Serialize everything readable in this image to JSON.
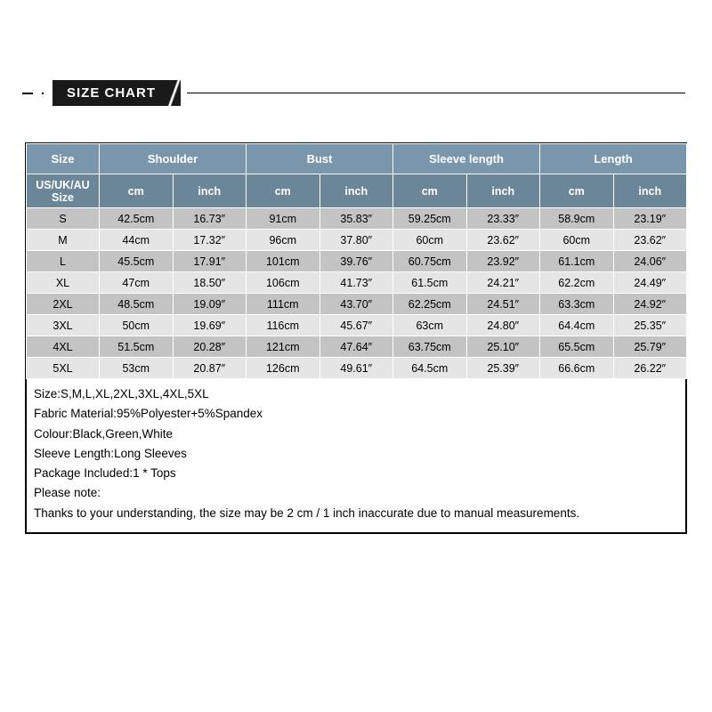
{
  "title": "SIZE CHART",
  "colors": {
    "header_row1_bg": "#7996ac",
    "header_row2_bg": "#6b8599",
    "header_text": "#ffffff",
    "body_row_odd_bg": "#c3c3c3",
    "body_row_even_bg": "#e5e5e5",
    "border": "#ffffff",
    "outer_border": "#000000",
    "badge_bg": "#1a1a1a",
    "text": "#000000"
  },
  "table": {
    "top_headers": [
      "Size",
      "Shoulder",
      "Bust",
      "Sleeve length",
      "Length"
    ],
    "sub_headers": [
      "US/UK/AU Size",
      "cm",
      "inch",
      "cm",
      "inch",
      "cm",
      "inch",
      "cm",
      "inch"
    ],
    "rows": [
      {
        "size": "S",
        "shoulder_cm": "42.5cm",
        "shoulder_in": "16.73″",
        "bust_cm": "91cm",
        "bust_in": "35.83″",
        "sleeve_cm": "59.25cm",
        "sleeve_in": "23.33″",
        "length_cm": "58.9cm",
        "length_in": "23.19″"
      },
      {
        "size": "M",
        "shoulder_cm": "44cm",
        "shoulder_in": "17.32″",
        "bust_cm": "96cm",
        "bust_in": "37.80″",
        "sleeve_cm": "60cm",
        "sleeve_in": "23.62″",
        "length_cm": "60cm",
        "length_in": "23.62″"
      },
      {
        "size": "L",
        "shoulder_cm": "45.5cm",
        "shoulder_in": "17.91″",
        "bust_cm": "101cm",
        "bust_in": "39.76″",
        "sleeve_cm": "60.75cm",
        "sleeve_in": "23.92″",
        "length_cm": "61.1cm",
        "length_in": "24.06″"
      },
      {
        "size": "XL",
        "shoulder_cm": "47cm",
        "shoulder_in": "18.50″",
        "bust_cm": "106cm",
        "bust_in": "41.73″",
        "sleeve_cm": "61.5cm",
        "sleeve_in": "24.21″",
        "length_cm": "62.2cm",
        "length_in": "24.49″"
      },
      {
        "size": "2XL",
        "shoulder_cm": "48.5cm",
        "shoulder_in": "19.09″",
        "bust_cm": "111cm",
        "bust_in": "43.70″",
        "sleeve_cm": "62.25cm",
        "sleeve_in": "24.51″",
        "length_cm": "63.3cm",
        "length_in": "24.92″"
      },
      {
        "size": "3XL",
        "shoulder_cm": "50cm",
        "shoulder_in": "19.69″",
        "bust_cm": "116cm",
        "bust_in": "45.67″",
        "sleeve_cm": "63cm",
        "sleeve_in": "24.80″",
        "length_cm": "64.4cm",
        "length_in": "25.35″"
      },
      {
        "size": "4XL",
        "shoulder_cm": "51.5cm",
        "shoulder_in": "20.28″",
        "bust_cm": "121cm",
        "bust_in": "47.64″",
        "sleeve_cm": "63.75cm",
        "sleeve_in": "25.10″",
        "length_cm": "65.5cm",
        "length_in": "25.79″"
      },
      {
        "size": "5XL",
        "shoulder_cm": "53cm",
        "shoulder_in": "20.87″",
        "bust_cm": "126cm",
        "bust_in": "49.61″",
        "sleeve_cm": "64.5cm",
        "sleeve_in": "25.39″",
        "length_cm": "66.6cm",
        "length_in": "26.22″"
      }
    ]
  },
  "notes": [
    "Size:S,M,L,XL,2XL,3XL,4XL,5XL",
    "Fabric Material:95%Polyester+5%Spandex",
    "Colour:Black,Green,White",
    "Sleeve Length:Long Sleeves",
    "Package Included:1 * Tops",
    "Please note:",
    "Thanks to your understanding, the size may be 2 cm / 1 inch inaccurate due to manual measurements."
  ]
}
